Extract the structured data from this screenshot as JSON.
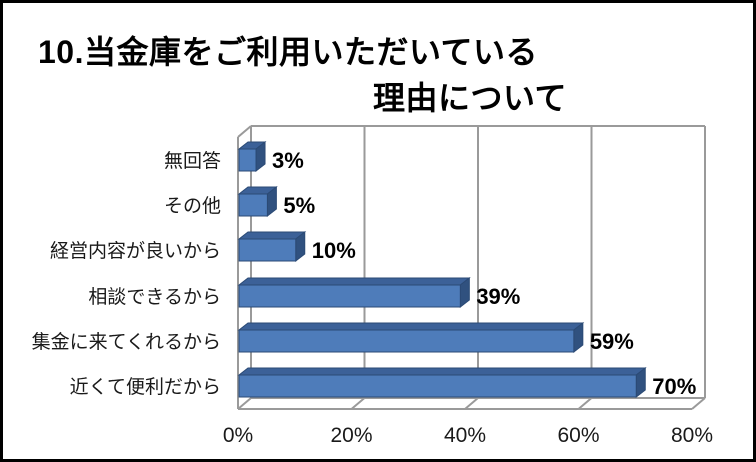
{
  "window": {
    "background": "#ffffff",
    "border_color": "#000000"
  },
  "title": {
    "line1": "10.当金庫をご利用いただいている",
    "line2": "理由について"
  },
  "chart_data": {
    "type": "bar",
    "orientation": "horizontal",
    "style": "3d",
    "title": "10.当金庫をご利用いただいている理由について",
    "categories": [
      "無回答",
      "その他",
      "経営内容が良いから",
      "相談できるから",
      "集金に来てくれるから",
      "近くて便利だから"
    ],
    "values": [
      3,
      5,
      10,
      39,
      59,
      70
    ],
    "data_labels": [
      "3%",
      "5%",
      "10%",
      "39%",
      "59%",
      "70%"
    ],
    "xlabel": "",
    "ylabel": "",
    "xlim": [
      0,
      80
    ],
    "x_ticks": [
      0,
      20,
      40,
      60,
      80
    ],
    "x_tick_labels": [
      "0%",
      "20%",
      "40%",
      "60%",
      "80%"
    ],
    "grid": true,
    "legend": false,
    "colors": {
      "bar_front": "#4E7CBA",
      "bar_top": "#3C6198",
      "bar_side": "#30517F",
      "bar_outline": "#2B4A75",
      "gridline": "#9A9A9A",
      "tick_label": "#1a1a1a",
      "category_label": "#1a1a1a",
      "data_label": "#000000"
    }
  }
}
